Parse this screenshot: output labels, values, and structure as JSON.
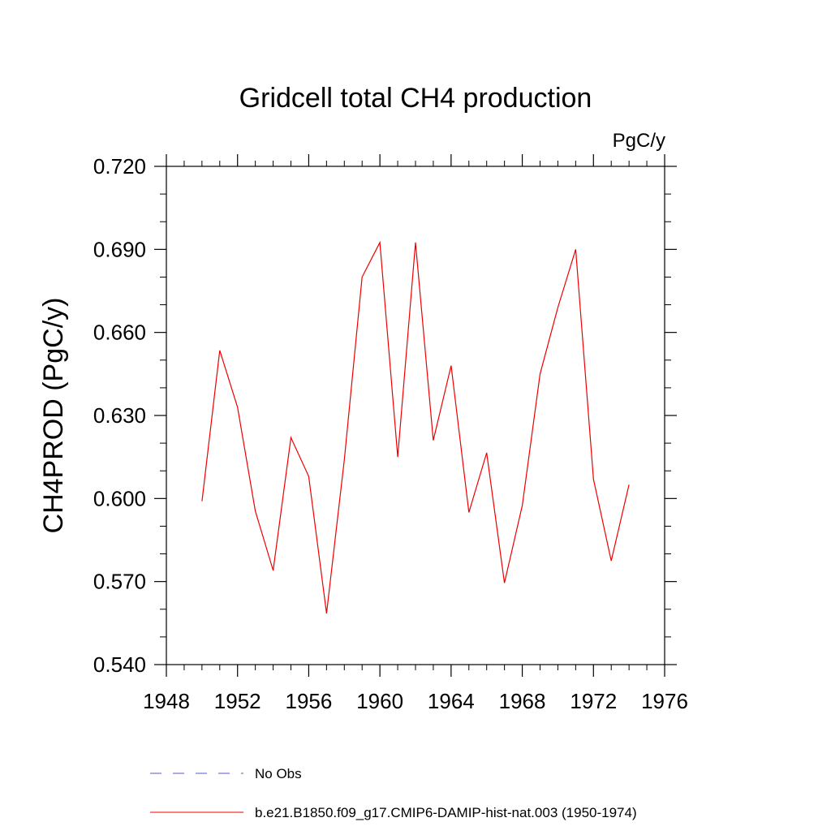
{
  "chart_data": {
    "type": "line",
    "title": "Gridcell total CH4 production",
    "units_label": "PgC/y",
    "ylabel": "CH4PROD  (PgC/y)",
    "xlabel": "",
    "xlim": [
      1948,
      1976
    ],
    "ylim": [
      0.54,
      0.72
    ],
    "x_ticks": [
      1948,
      1952,
      1956,
      1960,
      1964,
      1968,
      1972,
      1976
    ],
    "x_tick_labels": [
      "1948",
      "1952",
      "1956",
      "1960",
      "1964",
      "1968",
      "1972",
      "1976"
    ],
    "y_ticks": [
      0.54,
      0.57,
      0.6,
      0.63,
      0.66,
      0.69,
      0.72
    ],
    "y_tick_labels": [
      "0.540",
      "0.570",
      "0.600",
      "0.630",
      "0.660",
      "0.690",
      "0.720"
    ],
    "grid": false,
    "legend_position": "bottom",
    "legend": [
      {
        "label": "No Obs",
        "color": "#5555cc",
        "style": "dashed"
      },
      {
        "label": "b.e21.B1850.f09_g17.CMIP6-DAMIP-hist-nat.003 (1950-1974)",
        "color": "#ee0000",
        "style": "solid"
      }
    ],
    "series": [
      {
        "name": "b.e21.B1850.f09_g17.CMIP6-DAMIP-hist-nat.003 (1950-1974)",
        "color": "#ee0000",
        "x": [
          1950,
          1951,
          1952,
          1953,
          1954,
          1955,
          1956,
          1957,
          1958,
          1959,
          1960,
          1961,
          1962,
          1963,
          1964,
          1965,
          1966,
          1967,
          1968,
          1969,
          1970,
          1971,
          1972,
          1973,
          1974
        ],
        "y": [
          0.599,
          0.6535,
          0.633,
          0.5955,
          0.574,
          0.622,
          0.608,
          0.5585,
          0.614,
          0.68,
          0.6925,
          0.615,
          0.6925,
          0.621,
          0.648,
          0.595,
          0.6165,
          0.5695,
          0.5975,
          0.645,
          0.669,
          0.69,
          0.607,
          0.5775,
          0.605
        ]
      }
    ]
  }
}
